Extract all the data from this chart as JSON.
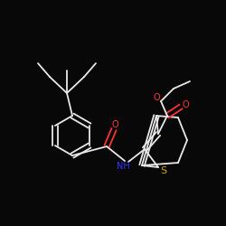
{
  "background_color": "#080808",
  "bond_color": "#e8e8e8",
  "atom_colors": {
    "O": "#ff3333",
    "N": "#3333ff",
    "S": "#ccaa00",
    "C": "#e8e8e8",
    "H": "#e8e8e8"
  },
  "font_size": 7,
  "lw": 1.3
}
